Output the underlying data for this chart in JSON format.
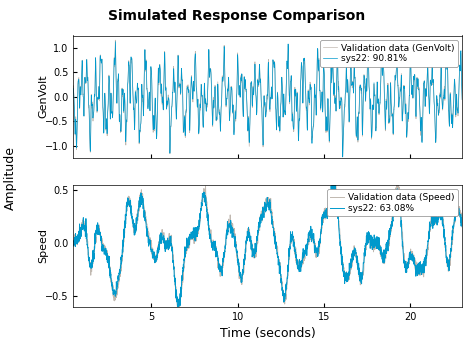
{
  "title": "Simulated Response Comparison",
  "xlabel": "Time (seconds)",
  "ylabel_shared": "Amplitude",
  "subplot1_ylabel": "GenVolt",
  "subplot2_ylabel": "Speed",
  "legend1_line1": "Validation data (GenVolt)",
  "legend1_line2": "sys22: 90.81%",
  "legend2_line1": "Validation data (Speed)",
  "legend2_line2": "sys22: 63.08%",
  "color_validation": "#c0b8b0",
  "color_sys22": "#0099cc",
  "xlim": [
    0.5,
    23.0
  ],
  "ylim1": [
    -1.25,
    1.25
  ],
  "ylim2": [
    -0.6,
    0.55
  ],
  "yticks1": [
    -1,
    -0.5,
    0,
    0.5,
    1
  ],
  "yticks2": [
    -0.5,
    0,
    0.5
  ],
  "xticks": [
    5,
    10,
    15,
    20
  ],
  "background_color": "#ffffff",
  "ax_background": "#ffffff",
  "title_fontsize": 10,
  "label_fontsize": 8,
  "tick_fontsize": 7,
  "legend_fontsize": 6.5,
  "n_points": 2300,
  "t_max": 23.0
}
